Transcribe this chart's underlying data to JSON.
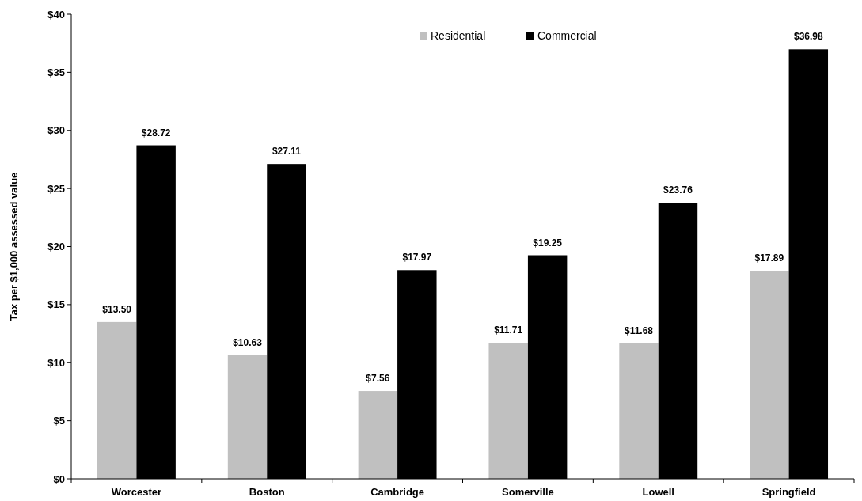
{
  "chart_data": {
    "type": "bar",
    "ylabel": "Tax per $1,000 assessed value",
    "categories": [
      "Worcester",
      "Boston",
      "Cambridge",
      "Somerville",
      "Lowell",
      "Springfield"
    ],
    "series": [
      {
        "name": "Residential",
        "color": "#c0c0c0",
        "values": [
          13.5,
          10.63,
          7.56,
          11.71,
          11.68,
          17.89
        ],
        "value_labels": [
          "$13.50",
          "$10.63",
          "$7.56",
          "$11.71",
          "$11.68",
          "$17.89"
        ]
      },
      {
        "name": "Commercial",
        "color": "#000000",
        "values": [
          28.72,
          27.11,
          17.97,
          19.25,
          23.76,
          36.98
        ],
        "value_labels": [
          "$28.72",
          "$27.11",
          "$17.97",
          "$19.25",
          "$23.76",
          "$36.98"
        ]
      }
    ],
    "ylim": [
      0,
      40
    ],
    "yticks": [
      {
        "value": 0,
        "label": "$0"
      },
      {
        "value": 5,
        "label": "$5"
      },
      {
        "value": 10,
        "label": "$10"
      },
      {
        "value": 15,
        "label": "$15"
      },
      {
        "value": 20,
        "label": "$20"
      },
      {
        "value": 25,
        "label": "$25"
      },
      {
        "value": 30,
        "label": "$30"
      },
      {
        "value": 35,
        "label": "$35"
      },
      {
        "value": 40,
        "label": "$40"
      }
    ],
    "legend": "top right",
    "grid": false
  }
}
